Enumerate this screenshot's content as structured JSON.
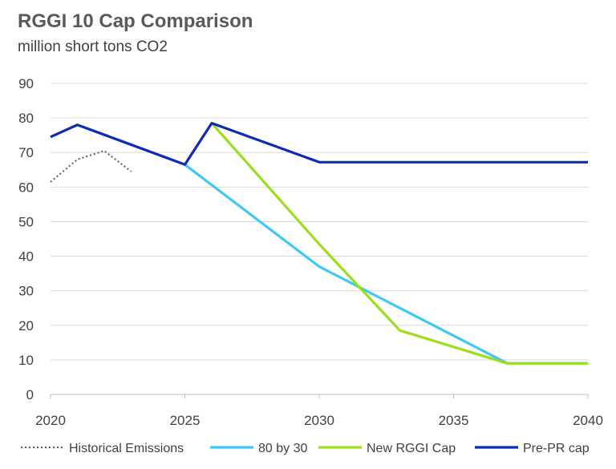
{
  "chart_data": {
    "type": "line",
    "title": "RGGI 10 Cap Comparison",
    "subtitle": "million short tons CO2",
    "xlim": [
      2020,
      2040
    ],
    "ylim": [
      0,
      90
    ],
    "x_ticks": [
      "2020",
      "2025",
      "2030",
      "2035",
      "2040"
    ],
    "y_ticks": [
      "0",
      "10",
      "20",
      "30",
      "40",
      "50",
      "60",
      "70",
      "80",
      "90"
    ],
    "grid": true,
    "legend_position": "bottom",
    "series": [
      {
        "name": "Historical Emissions",
        "color": "#595959",
        "dash": "dotted",
        "points": [
          [
            2020,
            61.5
          ],
          [
            2021,
            68.0
          ],
          [
            2022,
            70.5
          ],
          [
            2023,
            64.5
          ]
        ]
      },
      {
        "name": "80 by 30",
        "color": "#3fc8f4",
        "dash": "solid",
        "points": [
          [
            2025,
            66.5
          ],
          [
            2030,
            37.0
          ],
          [
            2033,
            25.0
          ],
          [
            2037,
            9.0
          ],
          [
            2040,
            9.0
          ]
        ]
      },
      {
        "name": "New RGGI Cap",
        "color": "#9ddc1e",
        "dash": "solid",
        "points": [
          [
            2026,
            78.5
          ],
          [
            2030,
            43.5
          ],
          [
            2033,
            18.5
          ],
          [
            2037,
            9.0
          ],
          [
            2040,
            9.0
          ]
        ]
      },
      {
        "name": "Pre-PR cap",
        "color": "#0c2bb6",
        "dash": "solid",
        "points": [
          [
            2020,
            74.5
          ],
          [
            2021,
            78.0
          ],
          [
            2025,
            66.5
          ],
          [
            2026,
            78.5
          ],
          [
            2030,
            67.2
          ],
          [
            2040,
            67.2
          ]
        ]
      }
    ]
  }
}
